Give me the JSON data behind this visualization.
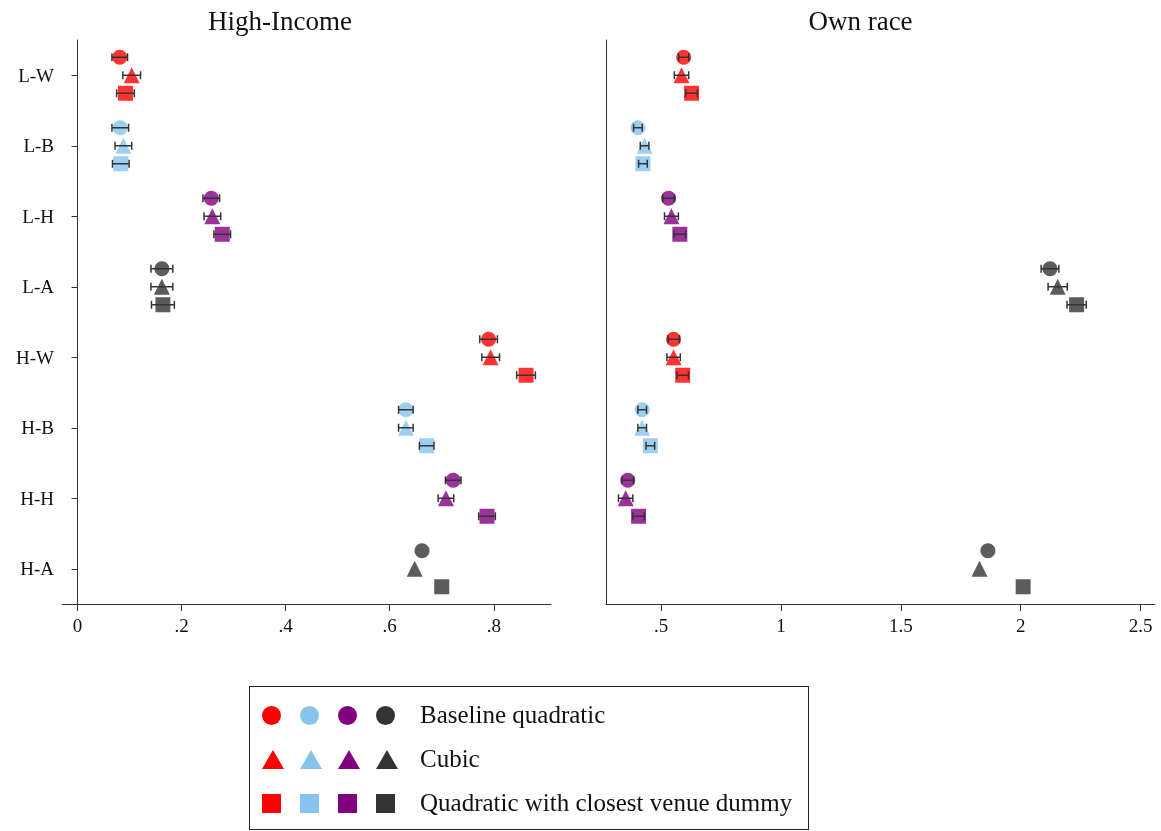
{
  "chart_data": [
    {
      "type": "scatter",
      "orientation": "horizontal",
      "title": "High-Income",
      "categories": [
        "L-W",
        "L-B",
        "L-H",
        "L-A",
        "H-W",
        "H-B",
        "H-H",
        "H-A"
      ],
      "xlim": [
        -0.03,
        0.91
      ],
      "xticks": [
        0,
        {
          "value": 0.2,
          "label": ".2"
        },
        {
          "value": 0.4,
          "label": ".4"
        },
        {
          "value": 0.6,
          "label": ".6"
        },
        {
          "value": 0.8,
          "label": ".8"
        }
      ],
      "grid": false,
      "legend": "bottom",
      "series": [
        {
          "name": "Baseline quadratic",
          "marker": "circle",
          "colors": [
            "#ff0000",
            "#87c3ec",
            "#800080",
            "#333333",
            "#ff0000",
            "#87c3ec",
            "#800080",
            "#333333"
          ],
          "values": [
            0.081,
            0.082,
            0.257,
            0.162,
            0.79,
            0.631,
            0.722,
            0.662
          ],
          "errors": [
            0.015,
            0.016,
            0.016,
            0.021,
            0.017,
            0.014,
            0.015,
            null
          ]
        },
        {
          "name": "Cubic",
          "marker": "triangle",
          "colors": [
            "#ff0000",
            "#87c3ec",
            "#800080",
            "#333333",
            "#ff0000",
            "#87c3ec",
            "#800080",
            "#333333"
          ],
          "values": [
            0.104,
            0.088,
            0.259,
            0.162,
            0.794,
            0.631,
            0.708,
            0.648
          ],
          "errors": [
            0.017,
            0.016,
            0.016,
            0.021,
            0.017,
            0.014,
            0.015,
            null
          ]
        },
        {
          "name": "Quadratic with closest venue dummy",
          "marker": "square",
          "colors": [
            "#ff0000",
            "#87c3ec",
            "#800080",
            "#333333",
            "#ff0000",
            "#87c3ec",
            "#800080",
            "#333333"
          ],
          "values": [
            0.092,
            0.083,
            0.278,
            0.164,
            0.862,
            0.671,
            0.787,
            0.7
          ],
          "errors": [
            0.017,
            0.016,
            0.016,
            0.022,
            0.018,
            0.014,
            0.016,
            null
          ]
        }
      ]
    },
    {
      "type": "scatter",
      "orientation": "horizontal",
      "title": "Own race",
      "categories": [
        null,
        null,
        null,
        null,
        null,
        null,
        null,
        null
      ],
      "tick_labels": "x",
      "xlim": [
        0.27,
        2.56
      ],
      "xticks": [
        {
          "value": 0.5,
          "label": ".5"
        },
        1,
        1.5,
        2,
        2.5
      ],
      "grid": false,
      "series": [
        {
          "marker": "circle",
          "colors": [
            "#ff0000",
            "#87c3ec",
            "#800080",
            "#333333",
            "#ff0000",
            "#87c3ec",
            "#800080",
            "#333333"
          ],
          "values": [
            0.594,
            0.403,
            0.531,
            2.122,
            0.552,
            0.421,
            0.361,
            1.863
          ],
          "errors": [
            0.021,
            0.018,
            0.024,
            0.037,
            0.024,
            0.018,
            0.024,
            null
          ]
        },
        {
          "marker": "triangle",
          "colors": [
            "#ff0000",
            "#87c3ec",
            "#800080",
            "#333333",
            "#ff0000",
            "#87c3ec",
            "#800080",
            "#333333"
          ],
          "values": [
            0.585,
            0.431,
            0.543,
            2.154,
            0.552,
            0.421,
            0.352,
            1.828
          ],
          "errors": [
            0.03,
            0.018,
            0.029,
            0.04,
            0.028,
            0.018,
            0.03,
            null
          ]
        },
        {
          "marker": "square",
          "colors": [
            "#ff0000",
            "#87c3ec",
            "#800080",
            "#333333",
            "#ff0000",
            "#87c3ec",
            "#800080",
            "#333333"
          ],
          "values": [
            0.627,
            0.424,
            0.578,
            2.233,
            0.59,
            0.455,
            0.406,
            2.01
          ],
          "errors": [
            0.024,
            0.018,
            0.024,
            0.04,
            0.024,
            0.018,
            0.024,
            null
          ]
        }
      ]
    }
  ]
}
